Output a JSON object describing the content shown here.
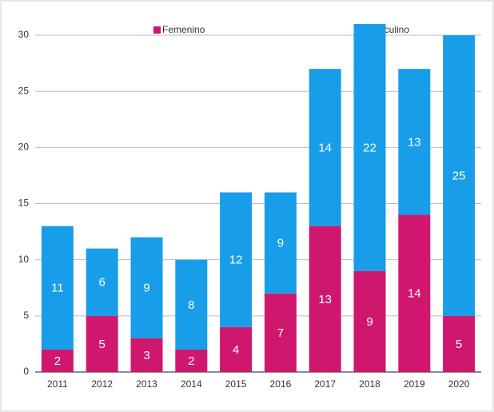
{
  "chart_data": {
    "type": "stacked_bar",
    "categories": [
      "2011",
      "2012",
      "2013",
      "2014",
      "2015",
      "2016",
      "2017",
      "2018",
      "2019",
      "2020"
    ],
    "series": [
      {
        "name": "Femenino",
        "color": "#d0176e",
        "values": [
          2,
          5,
          3,
          2,
          4,
          7,
          13,
          9,
          14,
          5
        ]
      },
      {
        "name": "Masculino",
        "color": "#189ee8",
        "values": [
          11,
          6,
          9,
          8,
          12,
          9,
          14,
          22,
          13,
          25
        ]
      }
    ],
    "ylim": [
      0,
      31
    ],
    "yticks": [
      0,
      5,
      10,
      15,
      20,
      25,
      30
    ],
    "grid": true,
    "legend": "top"
  }
}
